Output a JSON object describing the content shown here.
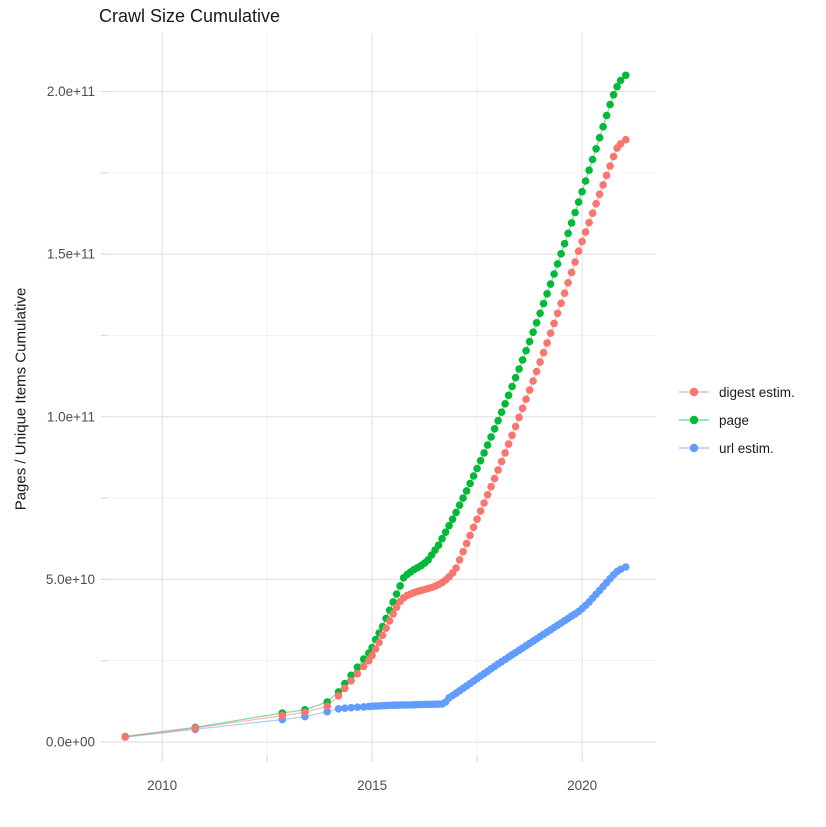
{
  "title": "Crawl Size Cumulative",
  "axes": {
    "x": {
      "tick_labels": [
        "2010",
        "2015",
        "2020"
      ],
      "tick_values": [
        2010,
        2015,
        2020
      ],
      "minor_tick_values": [
        2012.5,
        2017.5
      ]
    },
    "y": {
      "label": "Pages / Unique Items Cumulative",
      "tick_labels": [
        "0.0e+00",
        "5.0e+10",
        "1.0e+11",
        "1.5e+11",
        "2.0e+11"
      ],
      "tick_values": [
        0,
        50,
        100,
        150,
        200
      ],
      "minor_tick_values": [
        25,
        75,
        125,
        175
      ]
    }
  },
  "legend": {
    "items": [
      {
        "label": "digest estim.",
        "color": "#F8766D"
      },
      {
        "label": "page",
        "color": "#00BA38"
      },
      {
        "label": "url estim.",
        "color": "#619CFF"
      }
    ]
  },
  "colors": {
    "background": "#FFFFFF",
    "grid_major": "#E4E4E4",
    "grid_minor": "#F2F2F2",
    "tick_mark": "#DCDCDC",
    "axis_text": "#4D4D4D",
    "text": "#1A1A1A"
  },
  "chart_data": {
    "type": "scatter",
    "style": "points connected by thin semi-transparent lines (ggplot2 look)",
    "title": "Crawl Size Cumulative",
    "xlabel": "",
    "ylabel": "Pages / Unique Items Cumulative",
    "value_unit": "billions (1e9) of pages / unique items; y axis labeled in scientific notation",
    "xlim": [
      2008.71,
      2021.76
    ],
    "ylim": [
      -4,
      218
    ],
    "grid": "on",
    "legend_position": "right",
    "series": [
      {
        "name": "url estim.",
        "color": "#619CFF",
        "points": [
          [
            2009.12,
            1.5
          ],
          [
            2010.79,
            3.9
          ],
          [
            2012.86,
            6.9
          ],
          [
            2013.4,
            7.8
          ],
          [
            2013.93,
            9.3
          ],
          [
            2014.2,
            10.2
          ],
          [
            2014.35,
            10.4
          ],
          [
            2014.5,
            10.55
          ],
          [
            2014.65,
            10.7
          ],
          [
            2014.8,
            10.8
          ],
          [
            2014.92,
            10.9
          ],
          [
            2015.0,
            11.0
          ],
          [
            2015.083,
            11.05
          ],
          [
            2015.167,
            11.1
          ],
          [
            2015.25,
            11.15
          ],
          [
            2015.333,
            11.2
          ],
          [
            2015.417,
            11.25
          ],
          [
            2015.5,
            11.3
          ],
          [
            2015.583,
            11.32
          ],
          [
            2015.667,
            11.34
          ],
          [
            2015.75,
            11.36
          ],
          [
            2015.833,
            11.38
          ],
          [
            2015.917,
            11.4
          ],
          [
            2016.0,
            11.45
          ],
          [
            2016.083,
            11.5
          ],
          [
            2016.167,
            11.52
          ],
          [
            2016.25,
            11.55
          ],
          [
            2016.333,
            11.58
          ],
          [
            2016.417,
            11.6
          ],
          [
            2016.5,
            11.62
          ],
          [
            2016.583,
            11.65
          ],
          [
            2016.667,
            11.7
          ],
          [
            2016.75,
            12.3
          ],
          [
            2016.833,
            13.6
          ],
          [
            2016.917,
            14.3
          ],
          [
            2017.0,
            15.0
          ],
          [
            2017.083,
            15.75
          ],
          [
            2017.167,
            16.5
          ],
          [
            2017.25,
            17.25
          ],
          [
            2017.333,
            18.0
          ],
          [
            2017.417,
            18.75
          ],
          [
            2017.5,
            19.5
          ],
          [
            2017.583,
            20.25
          ],
          [
            2017.667,
            21.0
          ],
          [
            2017.75,
            21.75
          ],
          [
            2017.833,
            22.5
          ],
          [
            2017.917,
            23.25
          ],
          [
            2018.0,
            24.0
          ],
          [
            2018.083,
            24.7
          ],
          [
            2018.167,
            25.4
          ],
          [
            2018.25,
            26.1
          ],
          [
            2018.333,
            26.8
          ],
          [
            2018.417,
            27.5
          ],
          [
            2018.5,
            28.2
          ],
          [
            2018.583,
            28.9
          ],
          [
            2018.667,
            29.6
          ],
          [
            2018.75,
            30.3
          ],
          [
            2018.833,
            31.0
          ],
          [
            2018.917,
            31.7
          ],
          [
            2019.0,
            32.4
          ],
          [
            2019.083,
            33.1
          ],
          [
            2019.167,
            33.8
          ],
          [
            2019.25,
            34.5
          ],
          [
            2019.333,
            35.2
          ],
          [
            2019.417,
            35.9
          ],
          [
            2019.5,
            36.6
          ],
          [
            2019.583,
            37.3
          ],
          [
            2019.667,
            38.0
          ],
          [
            2019.75,
            38.7
          ],
          [
            2019.833,
            39.4
          ],
          [
            2019.917,
            40.1
          ],
          [
            2020.0,
            41.0
          ],
          [
            2020.083,
            42.0
          ],
          [
            2020.167,
            43.0
          ],
          [
            2020.25,
            44.2
          ],
          [
            2020.333,
            45.4
          ],
          [
            2020.417,
            46.6
          ],
          [
            2020.5,
            47.8
          ],
          [
            2020.583,
            49.0
          ],
          [
            2020.667,
            50.2
          ],
          [
            2020.75,
            51.4
          ],
          [
            2020.833,
            52.4
          ],
          [
            2020.917,
            53.1
          ],
          [
            2021.04,
            53.8
          ]
        ]
      },
      {
        "name": "page",
        "color": "#00BA38",
        "points": [
          [
            2009.12,
            1.7
          ],
          [
            2010.79,
            4.5
          ],
          [
            2012.86,
            8.9
          ],
          [
            2013.4,
            9.9
          ],
          [
            2013.93,
            12.3
          ],
          [
            2014.2,
            15.4
          ],
          [
            2014.35,
            18.0
          ],
          [
            2014.5,
            20.5
          ],
          [
            2014.65,
            23.0
          ],
          [
            2014.8,
            25.5
          ],
          [
            2014.92,
            27.3
          ],
          [
            2015.0,
            29.0
          ],
          [
            2015.083,
            31.5
          ],
          [
            2015.167,
            33.5
          ],
          [
            2015.25,
            35.5
          ],
          [
            2015.333,
            38.0
          ],
          [
            2015.417,
            40.5
          ],
          [
            2015.5,
            43.0
          ],
          [
            2015.583,
            45.5
          ],
          [
            2015.667,
            48.0
          ],
          [
            2015.75,
            50.5
          ],
          [
            2015.833,
            51.5
          ],
          [
            2015.917,
            52.3
          ],
          [
            2016.0,
            53.0
          ],
          [
            2016.083,
            53.6
          ],
          [
            2016.167,
            54.2
          ],
          [
            2016.25,
            55.0
          ],
          [
            2016.333,
            56.0
          ],
          [
            2016.417,
            57.5
          ],
          [
            2016.5,
            59.0
          ],
          [
            2016.583,
            60.5
          ],
          [
            2016.667,
            62.5
          ],
          [
            2016.75,
            64.5
          ],
          [
            2016.833,
            66.5
          ],
          [
            2016.917,
            68.5
          ],
          [
            2017.0,
            70.6
          ],
          [
            2017.083,
            72.8
          ],
          [
            2017.167,
            75.0
          ],
          [
            2017.25,
            77.2
          ],
          [
            2017.333,
            79.5
          ],
          [
            2017.417,
            81.8
          ],
          [
            2017.5,
            84.1
          ],
          [
            2017.583,
            86.5
          ],
          [
            2017.667,
            88.9
          ],
          [
            2017.75,
            91.3
          ],
          [
            2017.833,
            93.8
          ],
          [
            2017.917,
            96.3
          ],
          [
            2018.0,
            98.8
          ],
          [
            2018.083,
            101.4
          ],
          [
            2018.167,
            104.0
          ],
          [
            2018.25,
            106.6
          ],
          [
            2018.333,
            109.3
          ],
          [
            2018.417,
            112.0
          ],
          [
            2018.5,
            114.7
          ],
          [
            2018.583,
            117.5
          ],
          [
            2018.667,
            120.3
          ],
          [
            2018.75,
            123.1
          ],
          [
            2018.833,
            126.0
          ],
          [
            2018.917,
            128.9
          ],
          [
            2019.0,
            131.8
          ],
          [
            2019.083,
            134.8
          ],
          [
            2019.167,
            137.8
          ],
          [
            2019.25,
            140.8
          ],
          [
            2019.333,
            143.9
          ],
          [
            2019.417,
            147.0
          ],
          [
            2019.5,
            150.1
          ],
          [
            2019.583,
            153.2
          ],
          [
            2019.667,
            156.4
          ],
          [
            2019.75,
            159.6
          ],
          [
            2019.833,
            162.8
          ],
          [
            2019.917,
            166.0
          ],
          [
            2020.0,
            169.2
          ],
          [
            2020.083,
            172.5
          ],
          [
            2020.167,
            175.8
          ],
          [
            2020.25,
            179.1
          ],
          [
            2020.333,
            182.4
          ],
          [
            2020.417,
            185.8
          ],
          [
            2020.5,
            189.2
          ],
          [
            2020.583,
            192.6
          ],
          [
            2020.667,
            196.0
          ],
          [
            2020.75,
            199.0
          ],
          [
            2020.833,
            201.5
          ],
          [
            2020.917,
            203.4
          ],
          [
            2021.04,
            205.0
          ]
        ]
      },
      {
        "name": "digest estim.",
        "color": "#F8766D",
        "points": [
          [
            2009.12,
            1.6
          ],
          [
            2010.79,
            4.3
          ],
          [
            2012.86,
            8.1
          ],
          [
            2013.4,
            9.1
          ],
          [
            2013.93,
            11.0
          ],
          [
            2014.2,
            14.2
          ],
          [
            2014.35,
            16.5
          ],
          [
            2014.5,
            18.8
          ],
          [
            2014.65,
            21.0
          ],
          [
            2014.8,
            23.2
          ],
          [
            2014.92,
            25.0
          ],
          [
            2015.0,
            26.6
          ],
          [
            2015.083,
            28.6
          ],
          [
            2015.167,
            30.6
          ],
          [
            2015.25,
            32.8
          ],
          [
            2015.333,
            35.0
          ],
          [
            2015.417,
            37.2
          ],
          [
            2015.5,
            39.4
          ],
          [
            2015.583,
            41.4
          ],
          [
            2015.667,
            43.2
          ],
          [
            2015.75,
            44.3
          ],
          [
            2015.833,
            45.0
          ],
          [
            2015.917,
            45.5
          ],
          [
            2016.0,
            45.9
          ],
          [
            2016.083,
            46.3
          ],
          [
            2016.167,
            46.6
          ],
          [
            2016.25,
            46.9
          ],
          [
            2016.333,
            47.2
          ],
          [
            2016.417,
            47.5
          ],
          [
            2016.5,
            47.9
          ],
          [
            2016.583,
            48.4
          ],
          [
            2016.667,
            49.0
          ],
          [
            2016.75,
            49.8
          ],
          [
            2016.833,
            50.8
          ],
          [
            2016.917,
            52.0
          ],
          [
            2017.0,
            53.5
          ],
          [
            2017.083,
            56.0
          ],
          [
            2017.167,
            58.5
          ],
          [
            2017.25,
            61.0
          ],
          [
            2017.333,
            63.5
          ],
          [
            2017.417,
            66.0
          ],
          [
            2017.5,
            68.5
          ],
          [
            2017.583,
            71.0
          ],
          [
            2017.667,
            73.5
          ],
          [
            2017.75,
            76.0
          ],
          [
            2017.833,
            78.5
          ],
          [
            2017.917,
            81.0
          ],
          [
            2018.0,
            83.6
          ],
          [
            2018.083,
            86.2
          ],
          [
            2018.167,
            88.9
          ],
          [
            2018.25,
            91.6
          ],
          [
            2018.333,
            94.3
          ],
          [
            2018.417,
            97.0
          ],
          [
            2018.5,
            99.8
          ],
          [
            2018.583,
            102.6
          ],
          [
            2018.667,
            105.4
          ],
          [
            2018.75,
            108.2
          ],
          [
            2018.833,
            111.0
          ],
          [
            2018.917,
            113.9
          ],
          [
            2019.0,
            116.8
          ],
          [
            2019.083,
            119.7
          ],
          [
            2019.167,
            122.7
          ],
          [
            2019.25,
            125.7
          ],
          [
            2019.333,
            128.7
          ],
          [
            2019.417,
            131.8
          ],
          [
            2019.5,
            134.9
          ],
          [
            2019.583,
            138.0
          ],
          [
            2019.667,
            141.2
          ],
          [
            2019.75,
            144.4
          ],
          [
            2019.833,
            147.6
          ],
          [
            2019.917,
            150.9
          ],
          [
            2020.0,
            153.9
          ],
          [
            2020.083,
            156.8
          ],
          [
            2020.167,
            159.7
          ],
          [
            2020.25,
            162.6
          ],
          [
            2020.333,
            165.5
          ],
          [
            2020.417,
            168.4
          ],
          [
            2020.5,
            171.3
          ],
          [
            2020.583,
            174.2
          ],
          [
            2020.667,
            177.1
          ],
          [
            2020.75,
            180.0
          ],
          [
            2020.833,
            182.6
          ],
          [
            2020.917,
            183.9
          ],
          [
            2021.04,
            185.2
          ]
        ]
      }
    ]
  }
}
